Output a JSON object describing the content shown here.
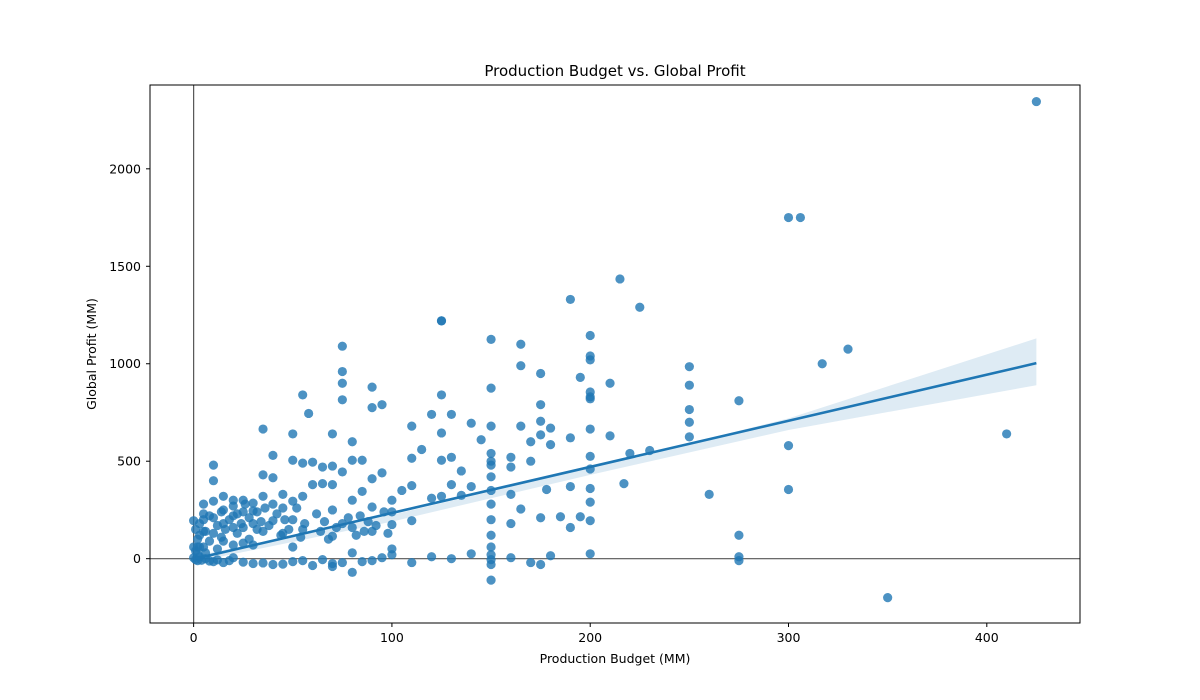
{
  "chart_data": {
    "type": "scatter",
    "title": "Production Budget vs. Global Profit",
    "xlabel": "Production Budget (MM)",
    "ylabel": "Global Profit (MM)",
    "xlim": [
      -22,
      447
    ],
    "ylim": [
      -330,
      2430
    ],
    "xticks": [
      0,
      100,
      200,
      300,
      400
    ],
    "yticks": [
      0,
      500,
      1000,
      1500,
      2000
    ],
    "grid": false,
    "reference_lines": {
      "x": 0,
      "y": 0
    },
    "colors": {
      "points": "#1f77b4",
      "line": "#1f77b4",
      "band": "#1f77b4",
      "reference": "#555555"
    },
    "regression": {
      "x": [
        0,
        425
      ],
      "y": [
        -2,
        1003
      ],
      "ci_x": [
        0,
        100,
        200,
        300,
        425
      ],
      "ci_upper": [
        12,
        225,
        465,
        720,
        1130
      ],
      "ci_lower": [
        -18,
        190,
        430,
        660,
        890
      ]
    },
    "series": [
      {
        "x": [
          425,
          300,
          306,
          215,
          190,
          225,
          125,
          330,
          317,
          410,
          350,
          300,
          300,
          260,
          250,
          250,
          250,
          250,
          250,
          275,
          275,
          275,
          275,
          230,
          220,
          217,
          210,
          210,
          195,
          195,
          200,
          200,
          200,
          200,
          200,
          200,
          200,
          200,
          200,
          200,
          200,
          200,
          200,
          190,
          190,
          190,
          185,
          180,
          180,
          178,
          175,
          175,
          175,
          175,
          175,
          175,
          170,
          170,
          165,
          165,
          165,
          165,
          160,
          160,
          160,
          160,
          150,
          150,
          150,
          150,
          150,
          150,
          150,
          150,
          150,
          150,
          150,
          150,
          150,
          150,
          150,
          145,
          140,
          140,
          135,
          135,
          130,
          130,
          130,
          125,
          125,
          125,
          125,
          125,
          120,
          120,
          115,
          110,
          110,
          110,
          110,
          105,
          100,
          100,
          100,
          100,
          95,
          95,
          90,
          90,
          90,
          90,
          90,
          85,
          85,
          80,
          80,
          80,
          80,
          80,
          75,
          75,
          75,
          75,
          75,
          75,
          70,
          70,
          70,
          70,
          70,
          70,
          65,
          65,
          60,
          60,
          58,
          55,
          55,
          55,
          55,
          50,
          50,
          50,
          50,
          50,
          45,
          45,
          45,
          40,
          40,
          40,
          40,
          35,
          35,
          35,
          35,
          30,
          30,
          30,
          30,
          25,
          25,
          25,
          25,
          20,
          20,
          20,
          20,
          20,
          15,
          15,
          15,
          15,
          10,
          10,
          10,
          10,
          10,
          5,
          5,
          5,
          5,
          5,
          2,
          2,
          2,
          1,
          1,
          0,
          0,
          0,
          3,
          3,
          3,
          3,
          6,
          6,
          8,
          8,
          12,
          12,
          14,
          14,
          16,
          18,
          22,
          22,
          24,
          26,
          28,
          28,
          32,
          32,
          34,
          36,
          38,
          42,
          44,
          46,
          48,
          52,
          54,
          56,
          62,
          64,
          66,
          68,
          72,
          78,
          82,
          84,
          86,
          88,
          92,
          96,
          98,
          1,
          2,
          4,
          6,
          8,
          10,
          12,
          15,
          18,
          20,
          25,
          30,
          35,
          40,
          45,
          50,
          55,
          60,
          65,
          70,
          75,
          80,
          85,
          90,
          95,
          100,
          110,
          120,
          130,
          140,
          150,
          160,
          170,
          180
        ],
        "y": [
          2345,
          1750,
          1750,
          1435,
          1330,
          1290,
          1220,
          1075,
          1000,
          640,
          -200,
          580,
          355,
          330,
          985,
          890,
          765,
          700,
          625,
          810,
          120,
          10,
          -10,
          555,
          540,
          385,
          900,
          630,
          930,
          215,
          1145,
          1040,
          1020,
          855,
          830,
          820,
          665,
          525,
          460,
          360,
          290,
          195,
          25,
          620,
          370,
          160,
          215,
          670,
          585,
          355,
          950,
          790,
          705,
          635,
          210,
          -30,
          600,
          500,
          1100,
          990,
          680,
          255,
          520,
          470,
          330,
          180,
          1125,
          875,
          680,
          540,
          500,
          480,
          420,
          350,
          280,
          200,
          120,
          60,
          20,
          -5,
          -110,
          610,
          695,
          370,
          450,
          325,
          740,
          520,
          380,
          1220,
          840,
          645,
          505,
          320,
          740,
          310,
          560,
          680,
          515,
          375,
          195,
          350,
          300,
          240,
          175,
          50,
          790,
          440,
          880,
          775,
          410,
          265,
          140,
          505,
          345,
          600,
          505,
          300,
          160,
          -70,
          1090,
          960,
          900,
          815,
          445,
          180,
          640,
          475,
          380,
          250,
          115,
          -25,
          470,
          385,
          495,
          380,
          745,
          840,
          490,
          320,
          150,
          640,
          505,
          295,
          200,
          60,
          330,
          260,
          130,
          530,
          415,
          280,
          195,
          665,
          430,
          320,
          140,
          285,
          245,
          180,
          70,
          300,
          240,
          160,
          80,
          300,
          270,
          220,
          160,
          70,
          320,
          250,
          180,
          90,
          480,
          400,
          295,
          210,
          130,
          280,
          230,
          200,
          140,
          60,
          100,
          60,
          20,
          150,
          40,
          195,
          60,
          5,
          180,
          120,
          60,
          10,
          140,
          30,
          220,
          90,
          170,
          50,
          240,
          110,
          150,
          200,
          230,
          130,
          180,
          280,
          210,
          100,
          240,
          150,
          190,
          260,
          170,
          230,
          120,
          200,
          150,
          260,
          110,
          180,
          230,
          140,
          190,
          100,
          160,
          210,
          120,
          220,
          140,
          190,
          170,
          240,
          130,
          -5,
          -10,
          -8,
          0,
          -12,
          -15,
          -6,
          -20,
          -10,
          5,
          -18,
          -25,
          -22,
          -30,
          -28,
          -15,
          -10,
          -35,
          -5,
          -40,
          -20,
          30,
          -15,
          -10,
          5,
          20,
          -20,
          10,
          0,
          25,
          -30,
          5,
          -20,
          15
        ]
      }
    ]
  }
}
